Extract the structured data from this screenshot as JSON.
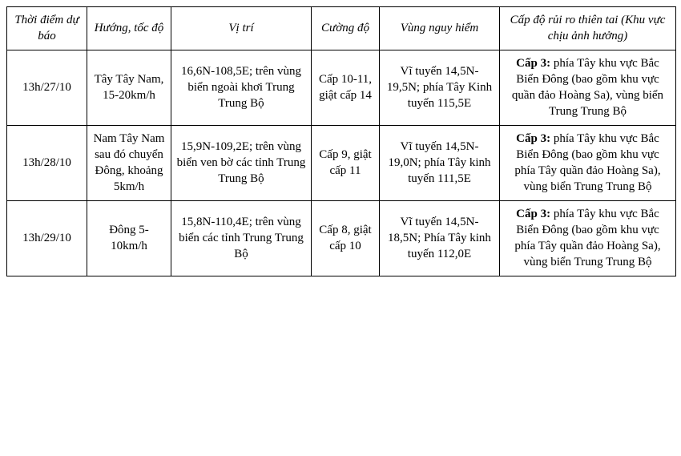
{
  "headers": {
    "time": "Thời điểm dự báo",
    "direction": "Hướng, tốc độ",
    "position": "Vị trí",
    "intensity": "Cường độ",
    "danger": "Vùng nguy hiểm",
    "risk": "Cấp độ rủi ro thiên tai (Khu vực chịu ảnh hưởng)"
  },
  "rows": [
    {
      "time": "13h/27/10",
      "direction": "Tây Tây Nam, 15-20km/h",
      "position": "16,6N-108,5E; trên vùng biển ngoài khơi Trung Trung Bộ",
      "intensity": "Cấp 10-11, giật cấp 14",
      "danger": "Vĩ tuyến 14,5N-19,5N; phía Tây Kinh tuyến 115,5E",
      "risk_label": "Cấp 3:",
      "risk_text": " phía Tây khu vực Bắc Biển Đông (bao gồm khu vực quần đảo Hoàng Sa), vùng biển Trung Trung Bộ"
    },
    {
      "time": "13h/28/10",
      "direction": "Nam Tây Nam sau đó chuyển Đông, khoảng 5km/h",
      "position": "15,9N-109,2E; trên vùng biển ven bờ các tỉnh Trung Trung Bộ",
      "intensity": "Cấp 9, giật cấp 11",
      "danger": "Vĩ tuyến 14,5N-19,0N; phía Tây kinh tuyến 111,5E",
      "risk_label": "Cấp 3:",
      "risk_text": " phía Tây khu vực Bắc Biển Đông (bao gồm khu vực phía Tây quần đảo Hoàng Sa), vùng biển Trung Trung Bộ"
    },
    {
      "time": "13h/29/10",
      "direction": "Đông 5-10km/h",
      "position": "15,8N-110,4E;  trên vùng biển các tỉnh Trung Trung Bộ",
      "intensity": "Cấp 8, giật cấp 10",
      "danger": "Vĩ tuyến 14,5N-18,5N; Phía Tây kinh tuyến 112,0E",
      "risk_label": "Cấp 3:",
      "risk_text": " phía Tây khu vực Bắc Biển Đông (bao gồm khu vực phía Tây quần đảo Hoàng Sa), vùng biển Trung Trung Bộ"
    }
  ]
}
